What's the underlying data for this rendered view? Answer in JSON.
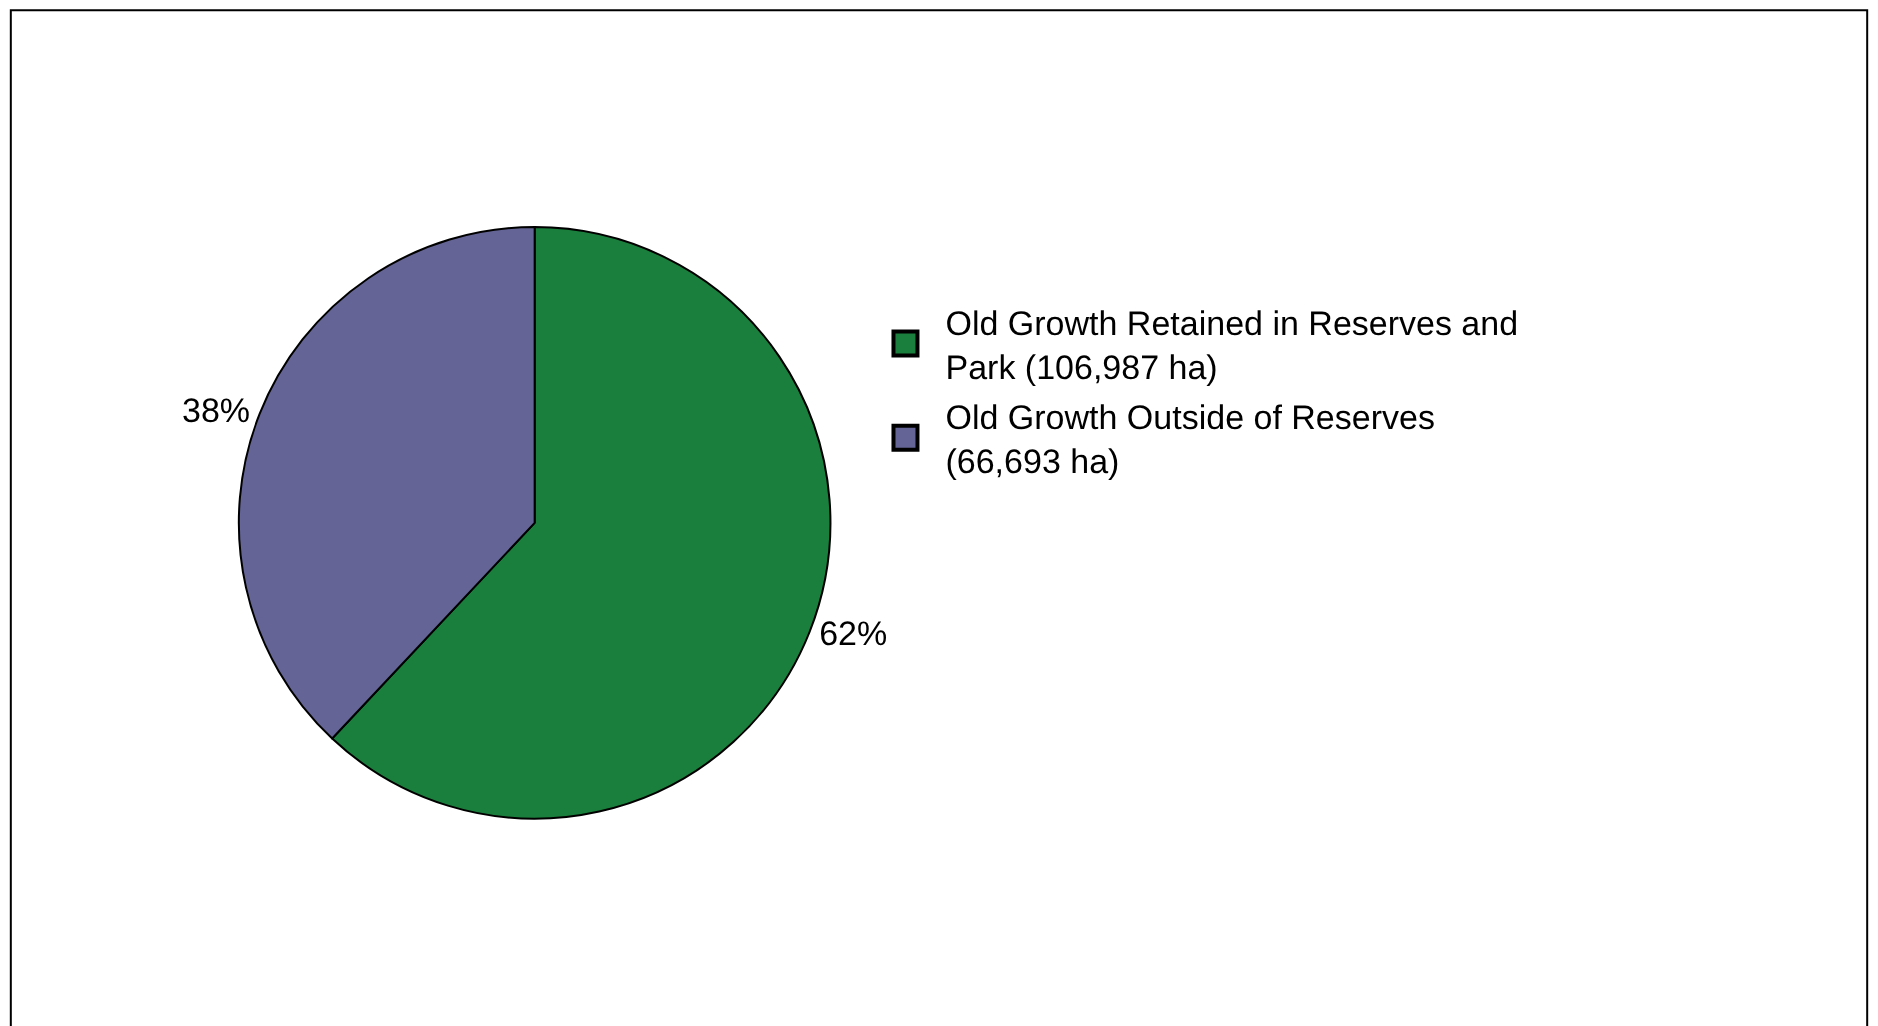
{
  "chart_data": {
    "type": "pie",
    "categories": [
      "Old Growth Retained in Reserves and Park (106,987 ha)",
      "Old Growth Outside of Reserves (66,693 ha)"
    ],
    "values": [
      62,
      38
    ],
    "value_labels": [
      "62%",
      "38%"
    ],
    "colors": [
      "#1a7f3c",
      "#646496"
    ],
    "legend": "right"
  }
}
